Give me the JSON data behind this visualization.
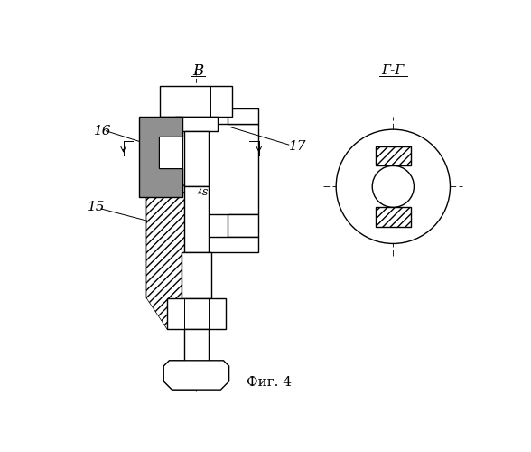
{
  "fig_caption": "Фиг. 4",
  "background_color": "#ffffff",
  "line_color": "#000000",
  "section_label_B": "В",
  "section_label_GG": "Г-Г",
  "label_16": "16",
  "label_15": "15",
  "label_17": "17",
  "label_s": "s"
}
